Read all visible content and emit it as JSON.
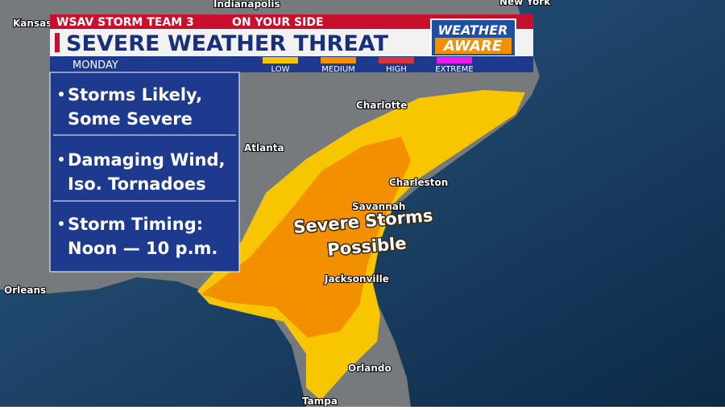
{
  "header": {
    "station": "WSAV STORM TEAM 3",
    "tagline": "ON YOUR SIDE",
    "title": "SEVERE WEATHER THREAT",
    "badge": [
      "WEATHER",
      "AWARE"
    ],
    "day": "MONDAY"
  },
  "legend": [
    {
      "label": "LOW",
      "color": "#f7c600"
    },
    {
      "label": "MEDIUM",
      "color": "#f39000"
    },
    {
      "label": "HIGH",
      "color": "#d8343c"
    },
    {
      "label": "EXTREME",
      "color": "#ee1bee"
    }
  ],
  "bullets": [
    [
      "Storms Likely,",
      "Some Severe"
    ],
    [
      "Damaging Wind,",
      "Iso. Tornadoes"
    ],
    [
      "Storm Timing:",
      "Noon — 10 p.m."
    ]
  ],
  "map": {
    "cities": [
      "Indianapolis",
      "New York",
      "Kansas",
      "Charlotte",
      "Atlanta",
      "Charleston",
      "Savannah",
      "Jacksonville",
      "Orleans",
      "Orlando",
      "Tampa"
    ],
    "annotation": [
      "Severe Storms",
      "Possible"
    ]
  }
}
